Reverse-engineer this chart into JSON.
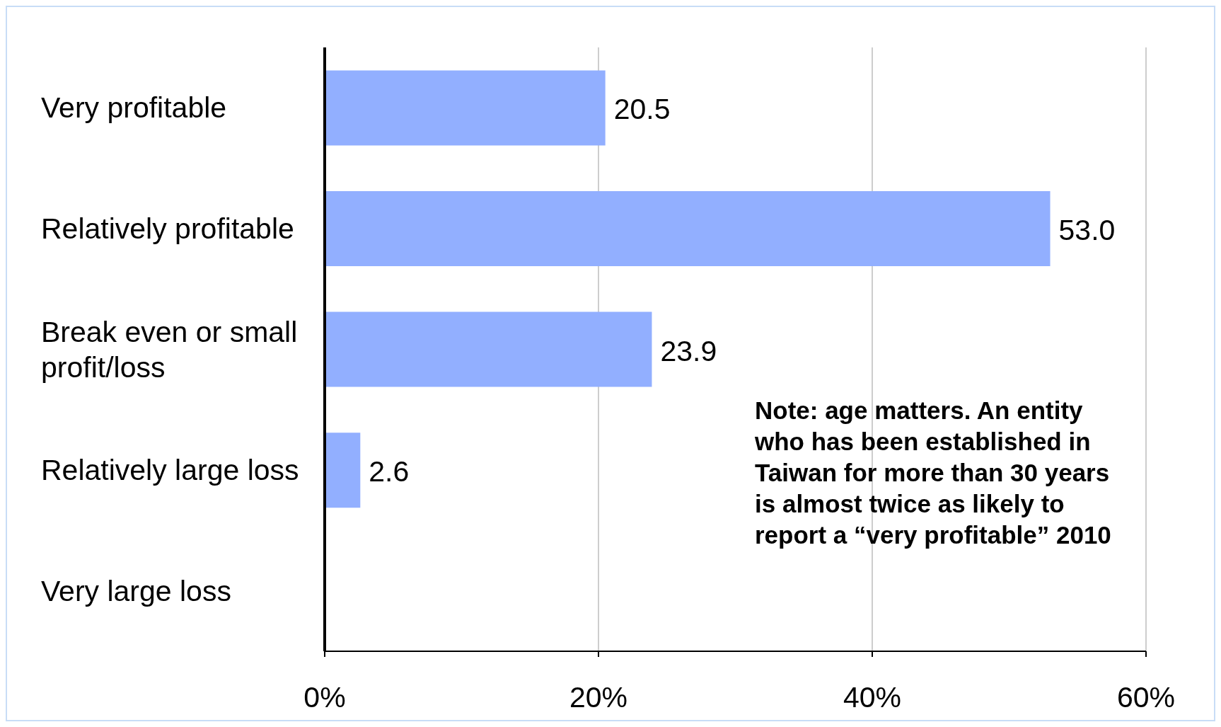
{
  "chart_data": {
    "type": "bar",
    "orientation": "horizontal",
    "categories": [
      "Very profitable",
      "Relatively profitable",
      "Break even or small profit/loss",
      "Relatively large loss",
      "Very large loss"
    ],
    "values": [
      20.5,
      53.0,
      23.9,
      2.6,
      null
    ],
    "value_labels": [
      "20.5",
      "53.0",
      "23.9",
      "2.6",
      null
    ],
    "color": "#92afff",
    "xlim": [
      0,
      60
    ],
    "xticks": [
      {
        "value": 0,
        "label": "0%"
      },
      {
        "value": 20,
        "label": "20%"
      },
      {
        "value": 40,
        "label": "40%"
      },
      {
        "value": 60,
        "label": "60%"
      }
    ],
    "grid": "x",
    "annotations": [
      "Note: age matters. An entity who has been established in Taiwan for more than 30 years is almost twice as likely to report a “very profitable” 2010"
    ]
  }
}
